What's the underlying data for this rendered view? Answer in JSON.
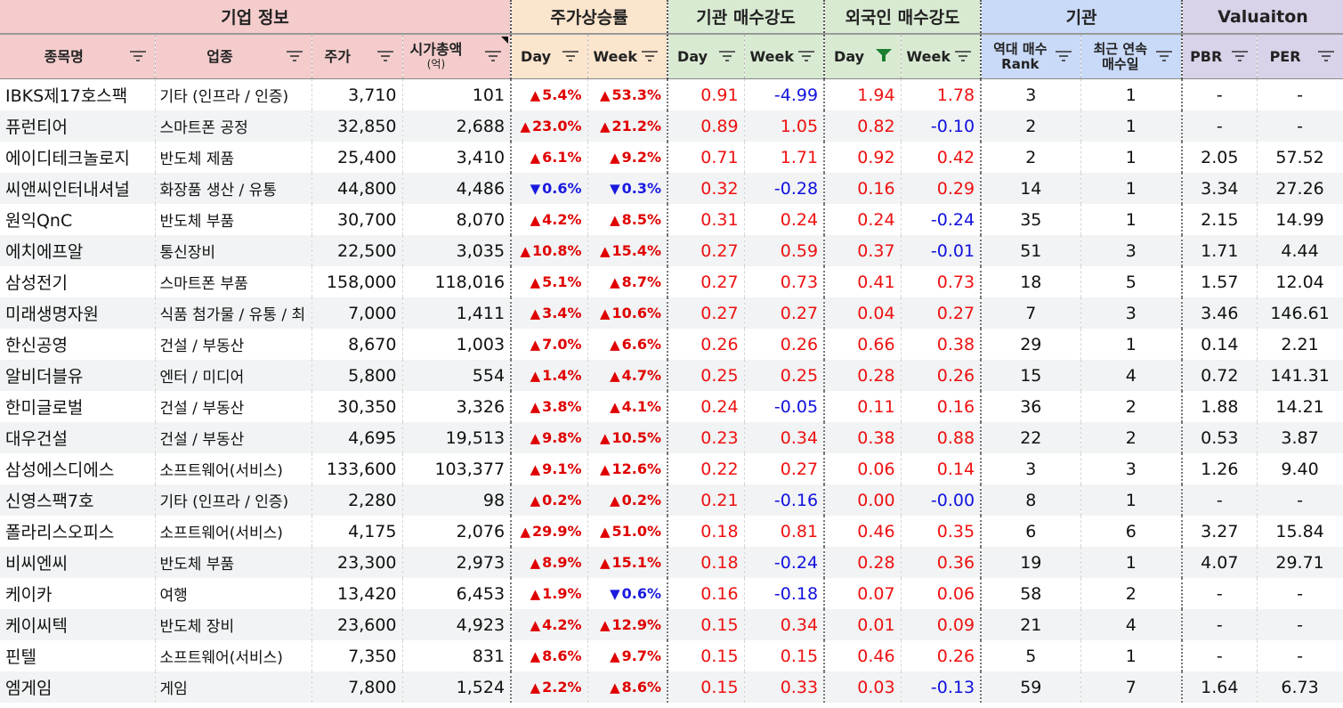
{
  "groups": {
    "info": "기업 정보",
    "stock": "주가상승률",
    "inst": "기관 매수강도",
    "foreign": "외국인 매수강도",
    "inst2": "기관",
    "valuation": "Valuaiton"
  },
  "columns": {
    "name": "종목명",
    "sector": "업종",
    "price": "주가",
    "mcap": "시가총액",
    "mcap_unit": "(억)",
    "stock_day": "Day",
    "stock_week": "Week",
    "inst_day": "Day",
    "inst_week": "Week",
    "for_day": "Day",
    "for_week": "Week",
    "rank_1": "역대 매수",
    "rank_2": "Rank",
    "streak_1": "최근 연속",
    "streak_2": "매수일",
    "pbr": "PBR",
    "per": "PER"
  },
  "colors": {
    "up": "#e00000",
    "down": "#1a1adf",
    "active_filter": "#1a7f2e"
  },
  "rows": [
    {
      "name": "IBKS제17호스팩",
      "sector": "기타 (인프라 / 인증)",
      "price": "3,710",
      "mcap": "101",
      "sd_dir": "up",
      "sd": "5.4%",
      "sw_dir": "up",
      "sw": "53.3%",
      "id": "0.91",
      "iw": "-4.99",
      "fd": "1.94",
      "fw": "1.78",
      "rank": "3",
      "streak": "1",
      "pbr": "-",
      "per": "-"
    },
    {
      "name": "퓨런티어",
      "sector": "스마트폰 공정",
      "price": "32,850",
      "mcap": "2,688",
      "sd_dir": "up",
      "sd": "23.0%",
      "sw_dir": "up",
      "sw": "21.2%",
      "id": "0.89",
      "iw": "1.05",
      "fd": "0.82",
      "fw": "-0.10",
      "rank": "2",
      "streak": "1",
      "pbr": "-",
      "per": "-"
    },
    {
      "name": "에이디테크놀로지",
      "sector": "반도체 제품",
      "price": "25,400",
      "mcap": "3,410",
      "sd_dir": "up",
      "sd": "6.1%",
      "sw_dir": "up",
      "sw": "9.2%",
      "id": "0.71",
      "iw": "1.71",
      "fd": "0.92",
      "fw": "0.42",
      "rank": "2",
      "streak": "1",
      "pbr": "2.05",
      "per": "57.52"
    },
    {
      "name": "씨앤씨인터내셔널",
      "sector": "화장품 생산 / 유통",
      "price": "44,800",
      "mcap": "4,486",
      "sd_dir": "dn",
      "sd": "0.6%",
      "sw_dir": "dn",
      "sw": "0.3%",
      "id": "0.32",
      "iw": "-0.28",
      "fd": "0.16",
      "fw": "0.29",
      "rank": "14",
      "streak": "1",
      "pbr": "3.34",
      "per": "27.26"
    },
    {
      "name": "원익QnC",
      "sector": "반도체 부품",
      "price": "30,700",
      "mcap": "8,070",
      "sd_dir": "up",
      "sd": "4.2%",
      "sw_dir": "up",
      "sw": "8.5%",
      "id": "0.31",
      "iw": "0.24",
      "fd": "0.24",
      "fw": "-0.24",
      "rank": "35",
      "streak": "1",
      "pbr": "2.15",
      "per": "14.99"
    },
    {
      "name": "에치에프알",
      "sector": "통신장비",
      "price": "22,500",
      "mcap": "3,035",
      "sd_dir": "up",
      "sd": "10.8%",
      "sw_dir": "up",
      "sw": "15.4%",
      "id": "0.27",
      "iw": "0.59",
      "fd": "0.37",
      "fw": "-0.01",
      "rank": "51",
      "streak": "3",
      "pbr": "1.71",
      "per": "4.44"
    },
    {
      "name": "삼성전기",
      "sector": "스마트폰 부품",
      "price": "158,000",
      "mcap": "118,016",
      "sd_dir": "up",
      "sd": "5.1%",
      "sw_dir": "up",
      "sw": "8.7%",
      "id": "0.27",
      "iw": "0.73",
      "fd": "0.41",
      "fw": "0.73",
      "rank": "18",
      "streak": "5",
      "pbr": "1.57",
      "per": "12.04"
    },
    {
      "name": "미래생명자원",
      "sector": "식품 첨가물 / 유통 / 최",
      "price": "7,000",
      "mcap": "1,411",
      "sd_dir": "up",
      "sd": "3.4%",
      "sw_dir": "up",
      "sw": "10.6%",
      "id": "0.27",
      "iw": "0.27",
      "fd": "0.04",
      "fw": "0.27",
      "rank": "7",
      "streak": "3",
      "pbr": "3.46",
      "per": "146.61"
    },
    {
      "name": "한신공영",
      "sector": "건설 / 부동산",
      "price": "8,670",
      "mcap": "1,003",
      "sd_dir": "up",
      "sd": "7.0%",
      "sw_dir": "up",
      "sw": "6.6%",
      "id": "0.26",
      "iw": "0.26",
      "fd": "0.66",
      "fw": "0.38",
      "rank": "29",
      "streak": "1",
      "pbr": "0.14",
      "per": "2.21"
    },
    {
      "name": "알비더블유",
      "sector": "엔터 / 미디어",
      "price": "5,800",
      "mcap": "554",
      "sd_dir": "up",
      "sd": "1.4%",
      "sw_dir": "up",
      "sw": "4.7%",
      "id": "0.25",
      "iw": "0.25",
      "fd": "0.28",
      "fw": "0.26",
      "rank": "15",
      "streak": "4",
      "pbr": "0.72",
      "per": "141.31"
    },
    {
      "name": "한미글로벌",
      "sector": "건설 / 부동산",
      "price": "30,350",
      "mcap": "3,326",
      "sd_dir": "up",
      "sd": "3.8%",
      "sw_dir": "up",
      "sw": "4.1%",
      "id": "0.24",
      "iw": "-0.05",
      "fd": "0.11",
      "fw": "0.16",
      "rank": "36",
      "streak": "2",
      "pbr": "1.88",
      "per": "14.21"
    },
    {
      "name": "대우건설",
      "sector": "건설 / 부동산",
      "price": "4,695",
      "mcap": "19,513",
      "sd_dir": "up",
      "sd": "9.8%",
      "sw_dir": "up",
      "sw": "10.5%",
      "id": "0.23",
      "iw": "0.34",
      "fd": "0.38",
      "fw": "0.88",
      "rank": "22",
      "streak": "2",
      "pbr": "0.53",
      "per": "3.87"
    },
    {
      "name": "삼성에스디에스",
      "sector": "소프트웨어(서비스)",
      "price": "133,600",
      "mcap": "103,377",
      "sd_dir": "up",
      "sd": "9.1%",
      "sw_dir": "up",
      "sw": "12.6%",
      "id": "0.22",
      "iw": "0.27",
      "fd": "0.06",
      "fw": "0.14",
      "rank": "3",
      "streak": "3",
      "pbr": "1.26",
      "per": "9.40"
    },
    {
      "name": "신영스팩7호",
      "sector": "기타 (인프라 / 인증)",
      "price": "2,280",
      "mcap": "98",
      "sd_dir": "up",
      "sd": "0.2%",
      "sw_dir": "up",
      "sw": "0.2%",
      "id": "0.21",
      "iw": "-0.16",
      "fd": "0.00",
      "fw": "-0.00",
      "rank": "8",
      "streak": "1",
      "pbr": "-",
      "per": "-"
    },
    {
      "name": "폴라리스오피스",
      "sector": "소프트웨어(서비스)",
      "price": "4,175",
      "mcap": "2,076",
      "sd_dir": "up",
      "sd": "29.9%",
      "sw_dir": "up",
      "sw": "51.0%",
      "id": "0.18",
      "iw": "0.81",
      "fd": "0.46",
      "fw": "0.35",
      "rank": "6",
      "streak": "6",
      "pbr": "3.27",
      "per": "15.84"
    },
    {
      "name": "비씨엔씨",
      "sector": "반도체 부품",
      "price": "23,300",
      "mcap": "2,973",
      "sd_dir": "up",
      "sd": "8.9%",
      "sw_dir": "up",
      "sw": "15.1%",
      "id": "0.18",
      "iw": "-0.24",
      "fd": "0.28",
      "fw": "0.36",
      "rank": "19",
      "streak": "1",
      "pbr": "4.07",
      "per": "29.71"
    },
    {
      "name": "케이카",
      "sector": "여행",
      "price": "13,420",
      "mcap": "6,453",
      "sd_dir": "up",
      "sd": "1.9%",
      "sw_dir": "dn",
      "sw": "0.6%",
      "id": "0.16",
      "iw": "-0.18",
      "fd": "0.07",
      "fw": "0.06",
      "rank": "58",
      "streak": "2",
      "pbr": "-",
      "per": "-"
    },
    {
      "name": "케이씨텍",
      "sector": "반도체 장비",
      "price": "23,600",
      "mcap": "4,923",
      "sd_dir": "up",
      "sd": "4.2%",
      "sw_dir": "up",
      "sw": "12.9%",
      "id": "0.15",
      "iw": "0.34",
      "fd": "0.01",
      "fw": "0.09",
      "rank": "21",
      "streak": "4",
      "pbr": "-",
      "per": "-"
    },
    {
      "name": "핀텔",
      "sector": "소프트웨어(서비스)",
      "price": "7,350",
      "mcap": "831",
      "sd_dir": "up",
      "sd": "8.6%",
      "sw_dir": "up",
      "sw": "9.7%",
      "id": "0.15",
      "iw": "0.15",
      "fd": "0.46",
      "fw": "0.26",
      "rank": "5",
      "streak": "1",
      "pbr": "-",
      "per": "-"
    },
    {
      "name": "엠게임",
      "sector": "게임",
      "price": "7,800",
      "mcap": "1,524",
      "sd_dir": "up",
      "sd": "2.2%",
      "sw_dir": "up",
      "sw": "8.6%",
      "id": "0.15",
      "iw": "0.33",
      "fd": "0.03",
      "fw": "-0.13",
      "rank": "59",
      "streak": "7",
      "pbr": "1.64",
      "per": "6.73"
    }
  ]
}
